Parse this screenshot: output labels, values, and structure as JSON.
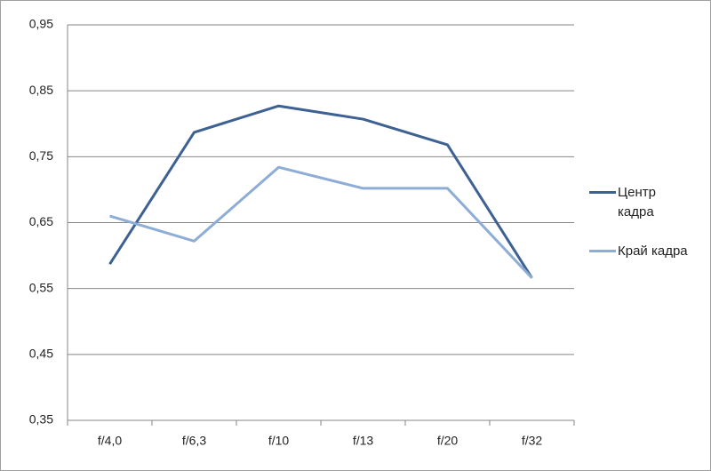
{
  "chart_data": {
    "type": "line",
    "categories": [
      "f/4,0",
      "f/6,3",
      "f/10",
      "f/13",
      "f/20",
      "f/32"
    ],
    "series": [
      {
        "name": "Центр кадра",
        "color": "#3d6192",
        "values": [
          0.587,
          0.787,
          0.827,
          0.807,
          0.768,
          0.566
        ]
      },
      {
        "name": "Край кадра",
        "color": "#8eadd6",
        "values": [
          0.66,
          0.622,
          0.734,
          0.702,
          0.702,
          0.566
        ]
      }
    ],
    "ylim": [
      0.35,
      0.95
    ],
    "yticks": [
      {
        "value": 0.35,
        "label": "0,35"
      },
      {
        "value": 0.45,
        "label": "0,45"
      },
      {
        "value": 0.55,
        "label": "0,55"
      },
      {
        "value": 0.65,
        "label": "0,65"
      },
      {
        "value": 0.75,
        "label": "0,75"
      },
      {
        "value": 0.85,
        "label": "0,85"
      },
      {
        "value": 0.95,
        "label": "0,95"
      }
    ],
    "grid": true,
    "legend": "right"
  }
}
